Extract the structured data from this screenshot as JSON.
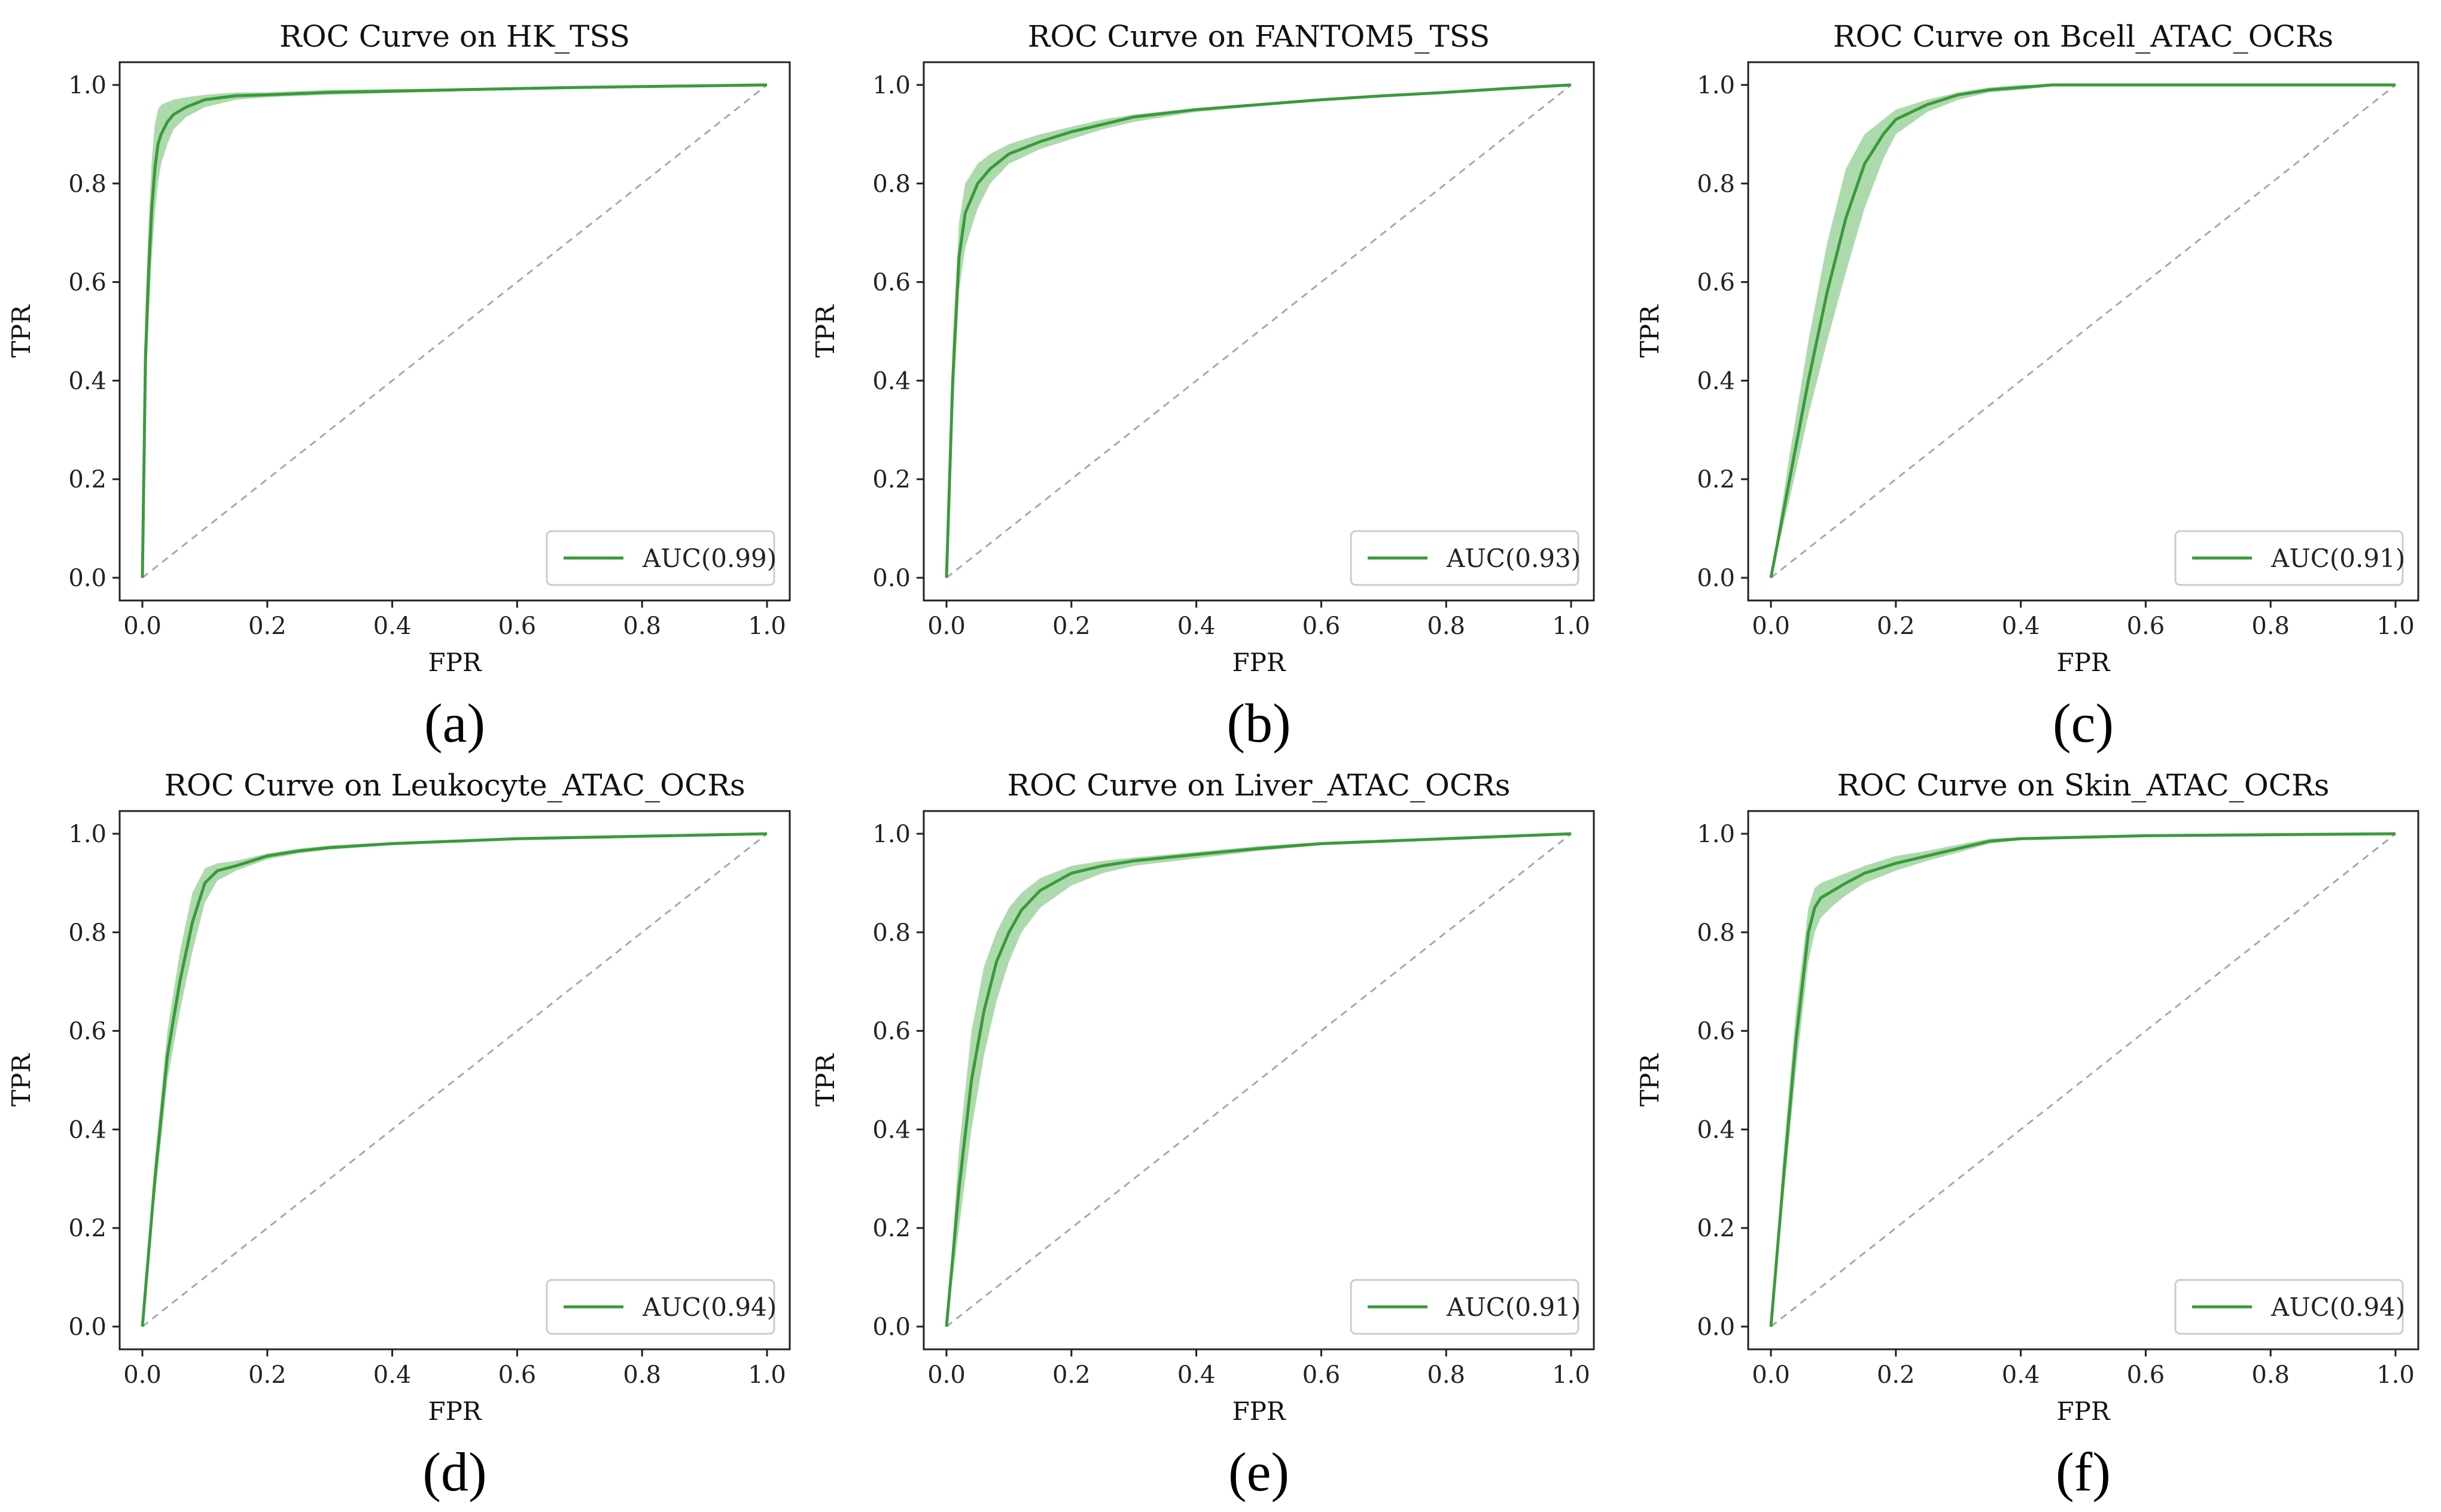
{
  "colors": {
    "curve": "#3b9a3b",
    "band": "#9fd39f",
    "diagonal": "#a8a8a8",
    "axes": "#222222"
  },
  "chart_data": [
    {
      "type": "line",
      "title": "ROC Curve on HK_TSS",
      "xlabel": "FPR",
      "ylabel": "TPR",
      "caption": "(a)",
      "xlim": [
        0,
        1
      ],
      "ylim": [
        0,
        1
      ],
      "xticks": [
        "0.0",
        "0.2",
        "0.4",
        "0.6",
        "0.8",
        "1.0"
      ],
      "yticks": [
        "0.0",
        "0.2",
        "0.4",
        "0.6",
        "0.8",
        "1.0"
      ],
      "legend": {
        "label": "AUC(0.99)",
        "position": "lower-right"
      },
      "series": [
        {
          "name": "AUC(0.99)",
          "x": [
            0,
            0.005,
            0.01,
            0.015,
            0.02,
            0.025,
            0.03,
            0.04,
            0.05,
            0.07,
            0.1,
            0.15,
            0.2,
            0.3,
            0.5,
            0.7,
            1.0
          ],
          "y": [
            0,
            0.45,
            0.62,
            0.75,
            0.83,
            0.88,
            0.9,
            0.925,
            0.94,
            0.955,
            0.97,
            0.978,
            0.98,
            0.985,
            0.99,
            0.995,
            1.0
          ],
          "upper": [
            0,
            0.55,
            0.72,
            0.85,
            0.92,
            0.95,
            0.96,
            0.965,
            0.97,
            0.975,
            0.98,
            0.985,
            0.985,
            0.99,
            0.993,
            0.997,
            1.0
          ],
          "lower": [
            0,
            0.35,
            0.52,
            0.65,
            0.74,
            0.8,
            0.84,
            0.88,
            0.91,
            0.935,
            0.955,
            0.97,
            0.975,
            0.98,
            0.987,
            0.993,
            1.0
          ]
        }
      ]
    },
    {
      "type": "line",
      "title": "ROC Curve on FANTOM5_TSS",
      "xlabel": "FPR",
      "ylabel": "TPR",
      "caption": "(b)",
      "xlim": [
        0,
        1
      ],
      "ylim": [
        0,
        1
      ],
      "xticks": [
        "0.0",
        "0.2",
        "0.4",
        "0.6",
        "0.8",
        "1.0"
      ],
      "yticks": [
        "0.0",
        "0.2",
        "0.4",
        "0.6",
        "0.8",
        "1.0"
      ],
      "legend": {
        "label": "AUC(0.93)",
        "position": "lower-right"
      },
      "series": [
        {
          "name": "AUC(0.93)",
          "x": [
            0,
            0.01,
            0.02,
            0.03,
            0.05,
            0.07,
            0.1,
            0.15,
            0.2,
            0.25,
            0.3,
            0.4,
            0.5,
            0.6,
            0.7,
            0.8,
            0.9,
            1.0
          ],
          "y": [
            0,
            0.4,
            0.65,
            0.74,
            0.8,
            0.83,
            0.86,
            0.885,
            0.905,
            0.92,
            0.935,
            0.95,
            0.96,
            0.97,
            0.978,
            0.985,
            0.993,
            1.0
          ],
          "upper": [
            0,
            0.48,
            0.72,
            0.8,
            0.84,
            0.86,
            0.88,
            0.9,
            0.915,
            0.93,
            0.94,
            0.953,
            0.963,
            0.972,
            0.98,
            0.987,
            0.994,
            1.0
          ],
          "lower": [
            0,
            0.32,
            0.58,
            0.67,
            0.75,
            0.8,
            0.84,
            0.87,
            0.89,
            0.91,
            0.925,
            0.945,
            0.957,
            0.967,
            0.976,
            0.983,
            0.991,
            1.0
          ]
        }
      ]
    },
    {
      "type": "line",
      "title": "ROC Curve on Bcell_ATAC_OCRs",
      "xlabel": "FPR",
      "ylabel": "TPR",
      "caption": "(c)",
      "xlim": [
        0,
        1
      ],
      "ylim": [
        0,
        1
      ],
      "xticks": [
        "0.0",
        "0.2",
        "0.4",
        "0.6",
        "0.8",
        "1.0"
      ],
      "yticks": [
        "0.0",
        "0.2",
        "0.4",
        "0.6",
        "0.8",
        "1.0"
      ],
      "legend": {
        "label": "AUC(0.91)",
        "position": "lower-right"
      },
      "series": [
        {
          "name": "AUC(0.91)",
          "x": [
            0,
            0.03,
            0.06,
            0.09,
            0.12,
            0.15,
            0.18,
            0.2,
            0.25,
            0.3,
            0.35,
            0.4,
            0.45,
            0.6,
            0.8,
            1.0
          ],
          "y": [
            0,
            0.2,
            0.4,
            0.58,
            0.73,
            0.84,
            0.9,
            0.93,
            0.96,
            0.98,
            0.99,
            0.995,
            1.0,
            1.0,
            1.0,
            1.0
          ],
          "upper": [
            0,
            0.25,
            0.48,
            0.68,
            0.83,
            0.9,
            0.93,
            0.95,
            0.97,
            0.985,
            0.995,
            1.0,
            1.0,
            1.0,
            1.0,
            1.0
          ],
          "lower": [
            0,
            0.16,
            0.33,
            0.48,
            0.62,
            0.75,
            0.85,
            0.9,
            0.945,
            0.97,
            0.985,
            0.99,
            0.997,
            1.0,
            1.0,
            1.0
          ]
        }
      ]
    },
    {
      "type": "line",
      "title": "ROC Curve on Leukocyte_ATAC_OCRs",
      "xlabel": "FPR",
      "ylabel": "TPR",
      "caption": "(d)",
      "xlim": [
        0,
        1
      ],
      "ylim": [
        0,
        1
      ],
      "xticks": [
        "0.0",
        "0.2",
        "0.4",
        "0.6",
        "0.8",
        "1.0"
      ],
      "yticks": [
        "0.0",
        "0.2",
        "0.4",
        "0.6",
        "0.8",
        "1.0"
      ],
      "legend": {
        "label": "AUC(0.94)",
        "position": "lower-right"
      },
      "series": [
        {
          "name": "AUC(0.94)",
          "x": [
            0,
            0.02,
            0.04,
            0.06,
            0.08,
            0.1,
            0.12,
            0.15,
            0.2,
            0.25,
            0.3,
            0.4,
            0.5,
            0.6,
            0.8,
            1.0
          ],
          "y": [
            0,
            0.3,
            0.55,
            0.7,
            0.82,
            0.9,
            0.925,
            0.935,
            0.955,
            0.965,
            0.972,
            0.98,
            0.985,
            0.99,
            0.995,
            1.0
          ],
          "upper": [
            0,
            0.34,
            0.6,
            0.76,
            0.88,
            0.93,
            0.94,
            0.945,
            0.96,
            0.97,
            0.976,
            0.983,
            0.987,
            0.992,
            0.996,
            1.0
          ],
          "lower": [
            0,
            0.26,
            0.5,
            0.64,
            0.76,
            0.86,
            0.905,
            0.925,
            0.948,
            0.96,
            0.968,
            0.977,
            0.983,
            0.988,
            0.994,
            1.0
          ]
        }
      ]
    },
    {
      "type": "line",
      "title": "ROC Curve on Liver_ATAC_OCRs",
      "xlabel": "FPR",
      "ylabel": "TPR",
      "caption": "(e)",
      "xlim": [
        0,
        1
      ],
      "ylim": [
        0,
        1
      ],
      "xticks": [
        "0.0",
        "0.2",
        "0.4",
        "0.6",
        "0.8",
        "1.0"
      ],
      "yticks": [
        "0.0",
        "0.2",
        "0.4",
        "0.6",
        "0.8",
        "1.0"
      ],
      "legend": {
        "label": "AUC(0.91)",
        "position": "lower-right"
      },
      "series": [
        {
          "name": "AUC(0.91)",
          "x": [
            0,
            0.02,
            0.04,
            0.06,
            0.08,
            0.1,
            0.12,
            0.15,
            0.2,
            0.25,
            0.3,
            0.4,
            0.5,
            0.6,
            0.7,
            0.8,
            0.9,
            1.0
          ],
          "y": [
            0,
            0.28,
            0.5,
            0.64,
            0.74,
            0.8,
            0.845,
            0.885,
            0.92,
            0.935,
            0.945,
            0.958,
            0.97,
            0.98,
            0.985,
            0.99,
            0.995,
            1.0
          ],
          "upper": [
            0,
            0.36,
            0.6,
            0.73,
            0.8,
            0.85,
            0.88,
            0.91,
            0.935,
            0.945,
            0.952,
            0.963,
            0.975,
            0.983,
            0.988,
            0.992,
            0.996,
            1.0
          ],
          "lower": [
            0,
            0.2,
            0.4,
            0.55,
            0.66,
            0.74,
            0.8,
            0.85,
            0.895,
            0.92,
            0.935,
            0.95,
            0.965,
            0.977,
            0.982,
            0.988,
            0.994,
            1.0
          ]
        }
      ]
    },
    {
      "type": "line",
      "title": "ROC Curve on Skin_ATAC_OCRs",
      "xlabel": "FPR",
      "ylabel": "TPR",
      "caption": "(f)",
      "xlim": [
        0,
        1
      ],
      "ylim": [
        0,
        1
      ],
      "xticks": [
        "0.0",
        "0.2",
        "0.4",
        "0.6",
        "0.8",
        "1.0"
      ],
      "yticks": [
        "0.0",
        "0.2",
        "0.4",
        "0.6",
        "0.8",
        "1.0"
      ],
      "legend": {
        "label": "AUC(0.94)",
        "position": "lower-right"
      },
      "series": [
        {
          "name": "AUC(0.94)",
          "x": [
            0,
            0.02,
            0.04,
            0.06,
            0.07,
            0.08,
            0.1,
            0.12,
            0.15,
            0.2,
            0.25,
            0.3,
            0.35,
            0.4,
            0.5,
            0.6,
            0.8,
            1.0
          ],
          "y": [
            0,
            0.3,
            0.58,
            0.8,
            0.85,
            0.87,
            0.885,
            0.9,
            0.92,
            0.94,
            0.955,
            0.97,
            0.985,
            0.99,
            0.993,
            0.996,
            0.998,
            1.0
          ],
          "upper": [
            0,
            0.35,
            0.64,
            0.85,
            0.89,
            0.9,
            0.91,
            0.92,
            0.935,
            0.955,
            0.965,
            0.978,
            0.99,
            0.993,
            0.995,
            0.997,
            0.999,
            1.0
          ],
          "lower": [
            0,
            0.26,
            0.52,
            0.74,
            0.8,
            0.83,
            0.855,
            0.875,
            0.9,
            0.925,
            0.945,
            0.962,
            0.98,
            0.987,
            0.991,
            0.995,
            0.997,
            1.0
          ]
        }
      ]
    }
  ]
}
